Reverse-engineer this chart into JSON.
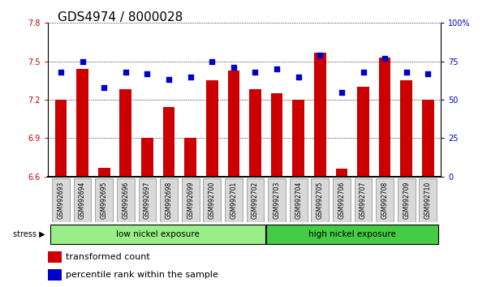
{
  "title": "GDS4974 / 8000028",
  "samples": [
    "GSM992693",
    "GSM992694",
    "GSM992695",
    "GSM992696",
    "GSM992697",
    "GSM992698",
    "GSM992699",
    "GSM992700",
    "GSM992701",
    "GSM992702",
    "GSM992703",
    "GSM992704",
    "GSM992705",
    "GSM992706",
    "GSM992707",
    "GSM992708",
    "GSM992709",
    "GSM992710"
  ],
  "red_bars": [
    7.2,
    7.44,
    6.67,
    7.28,
    6.9,
    7.14,
    6.9,
    7.35,
    7.43,
    7.28,
    7.25,
    7.2,
    7.57,
    6.66,
    7.3,
    7.53,
    7.35,
    7.2
  ],
  "blue_dots_pct": [
    68,
    75,
    58,
    68,
    67,
    63,
    65,
    75,
    71,
    68,
    70,
    65,
    79,
    55,
    68,
    77,
    68,
    67
  ],
  "ymin": 6.6,
  "ymax": 7.8,
  "yright_min": 0,
  "yright_max": 100,
  "yticks_left": [
    6.6,
    6.9,
    7.2,
    7.5,
    7.8
  ],
  "yticks_right": [
    0,
    25,
    50,
    75,
    100
  ],
  "group1_label": "low nickel exposure",
  "group1_count": 10,
  "group2_label": "high nickel exposure",
  "group2_count": 8,
  "stress_label": "stress",
  "legend_red": "transformed count",
  "legend_blue": "percentile rank within the sample",
  "bar_color": "#cc0000",
  "dot_color": "#0000cc",
  "group1_color": "#99ee88",
  "group2_color": "#44cc44",
  "title_fontsize": 11,
  "tick_fontsize": 7,
  "label_fontsize": 8
}
